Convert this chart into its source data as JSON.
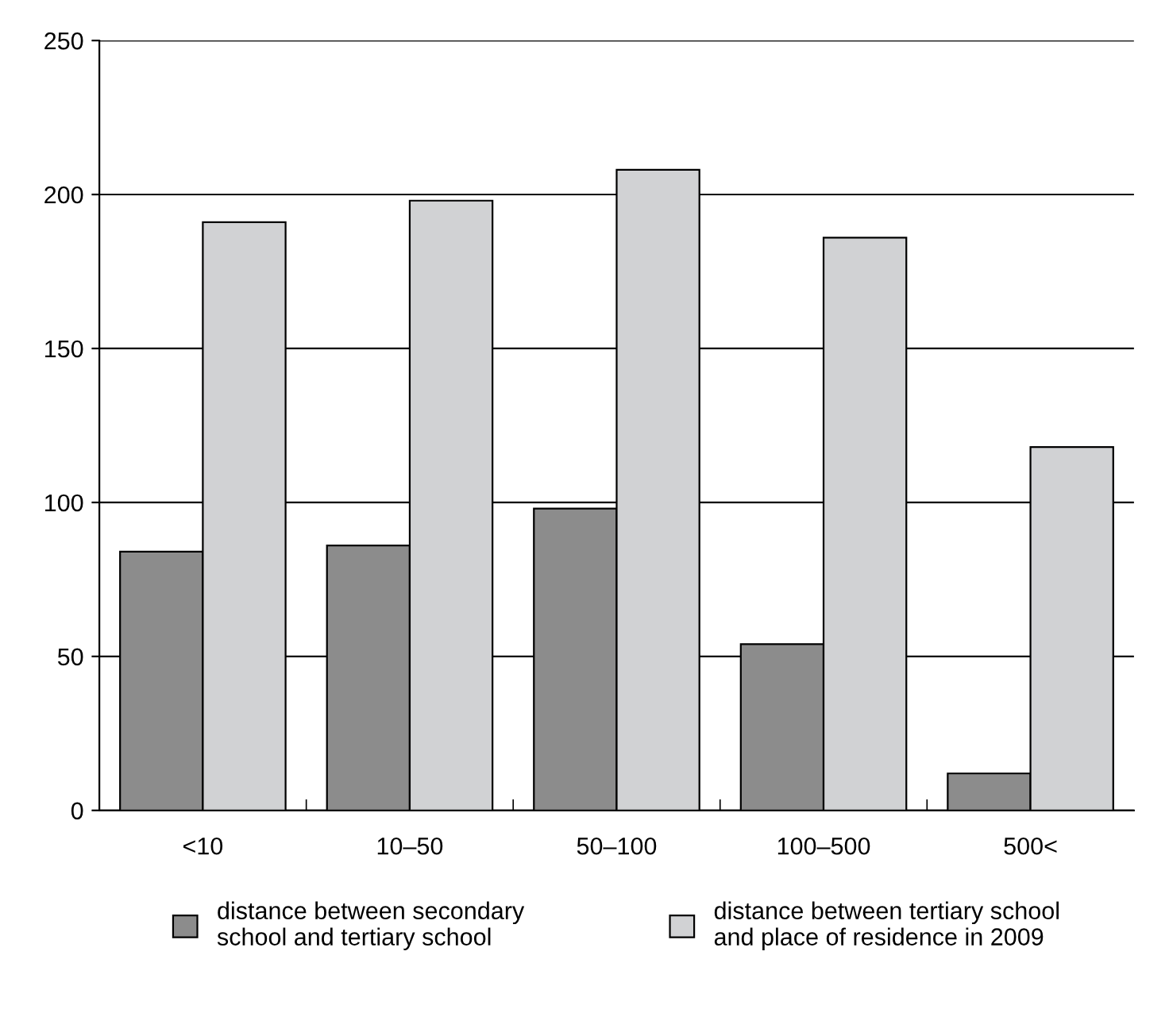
{
  "chart_data": {
    "type": "bar",
    "categories": [
      "<10",
      "10–50",
      "50–100",
      "100–500",
      "500<"
    ],
    "series": [
      {
        "name": "distance between secondary\nschool and tertiary school",
        "color": "#8c8c8c",
        "values": [
          84,
          86,
          98,
          54,
          12
        ]
      },
      {
        "name": "distance between tertiary school\nand place of residence in 2009",
        "color": "#d1d2d4",
        "values": [
          191,
          198,
          208,
          186,
          118
        ]
      }
    ],
    "ylim": [
      0,
      250
    ],
    "yticks": [
      0,
      50,
      100,
      150,
      200,
      250
    ],
    "grid": "y",
    "legend": "bottom"
  }
}
